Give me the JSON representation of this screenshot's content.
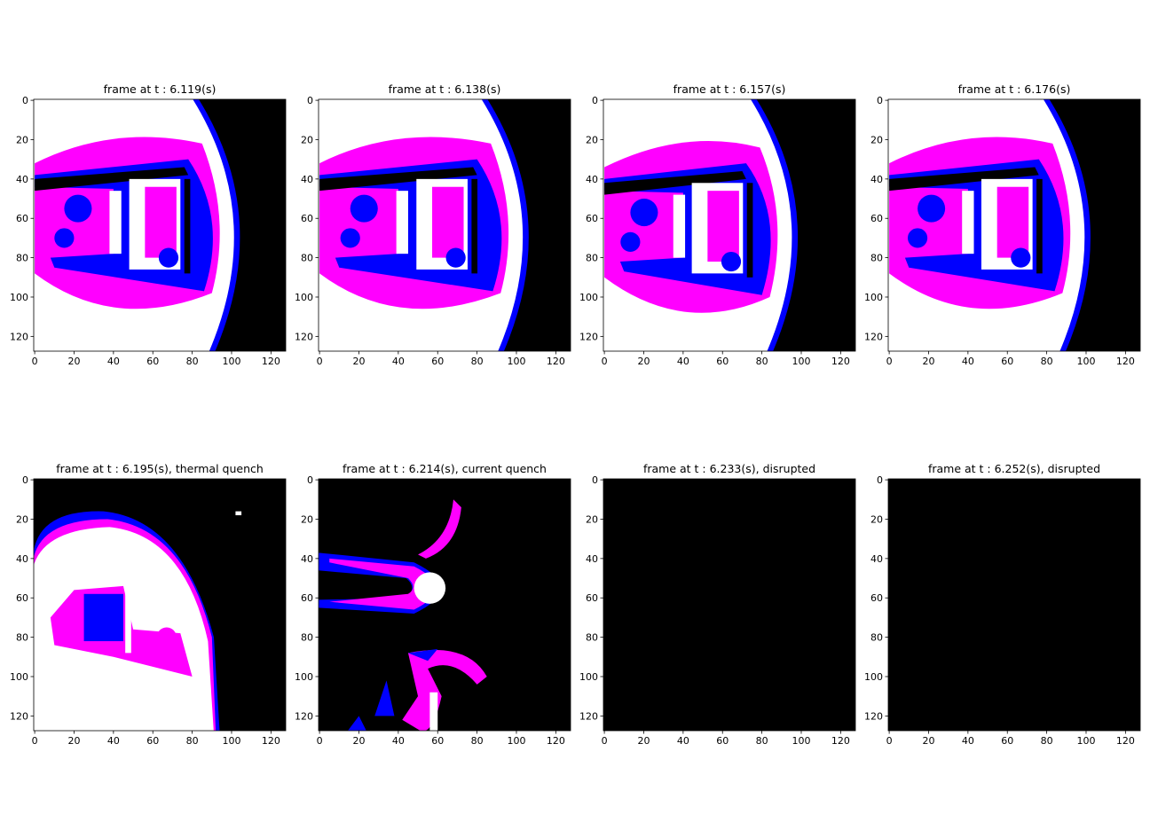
{
  "chart_data": [
    {
      "type": "image",
      "title": "frame at t : 6.119(s)",
      "xlim": [
        -0.5,
        127.5
      ],
      "ylim": [
        127.5,
        -0.5
      ],
      "xticks": [
        0,
        20,
        40,
        60,
        80,
        100,
        120
      ],
      "yticks": [
        0,
        20,
        40,
        60,
        80,
        100,
        120
      ]
    },
    {
      "type": "image",
      "title": "frame at t : 6.138(s)",
      "xlim": [
        -0.5,
        127.5
      ],
      "ylim": [
        127.5,
        -0.5
      ],
      "xticks": [
        0,
        20,
        40,
        60,
        80,
        100,
        120
      ],
      "yticks": [
        0,
        20,
        40,
        60,
        80,
        100,
        120
      ]
    },
    {
      "type": "image",
      "title": "frame at t : 6.157(s)",
      "xlim": [
        -0.5,
        127.5
      ],
      "ylim": [
        127.5,
        -0.5
      ],
      "xticks": [
        0,
        20,
        40,
        60,
        80,
        100,
        120
      ],
      "yticks": [
        0,
        20,
        40,
        60,
        80,
        100,
        120
      ]
    },
    {
      "type": "image",
      "title": "frame at t : 6.176(s)",
      "xlim": [
        -0.5,
        127.5
      ],
      "ylim": [
        127.5,
        -0.5
      ],
      "xticks": [
        0,
        20,
        40,
        60,
        80,
        100,
        120
      ],
      "yticks": [
        0,
        20,
        40,
        60,
        80,
        100,
        120
      ]
    },
    {
      "type": "image",
      "title": "frame at t : 6.195(s), thermal quench",
      "xlim": [
        -0.5,
        127.5
      ],
      "ylim": [
        127.5,
        -0.5
      ],
      "xticks": [
        0,
        20,
        40,
        60,
        80,
        100,
        120
      ],
      "yticks": [
        0,
        20,
        40,
        60,
        80,
        100,
        120
      ]
    },
    {
      "type": "image",
      "title": "frame at t : 6.214(s), current quench",
      "xlim": [
        -0.5,
        127.5
      ],
      "ylim": [
        127.5,
        -0.5
      ],
      "xticks": [
        0,
        20,
        40,
        60,
        80,
        100,
        120
      ],
      "yticks": [
        0,
        20,
        40,
        60,
        80,
        100,
        120
      ]
    },
    {
      "type": "image",
      "title": "frame at t : 6.233(s), disrupted",
      "xlim": [
        -0.5,
        127.5
      ],
      "ylim": [
        127.5,
        -0.5
      ],
      "xticks": [
        0,
        20,
        40,
        60,
        80,
        100,
        120
      ],
      "yticks": [
        0,
        20,
        40,
        60,
        80,
        100,
        120
      ]
    },
    {
      "type": "image",
      "title": "frame at t : 6.252(s), disrupted",
      "xlim": [
        -0.5,
        127.5
      ],
      "ylim": [
        127.5,
        -0.5
      ],
      "xticks": [
        0,
        20,
        40,
        60,
        80,
        100,
        120
      ],
      "yticks": [
        0,
        20,
        40,
        60,
        80,
        100,
        120
      ]
    }
  ]
}
